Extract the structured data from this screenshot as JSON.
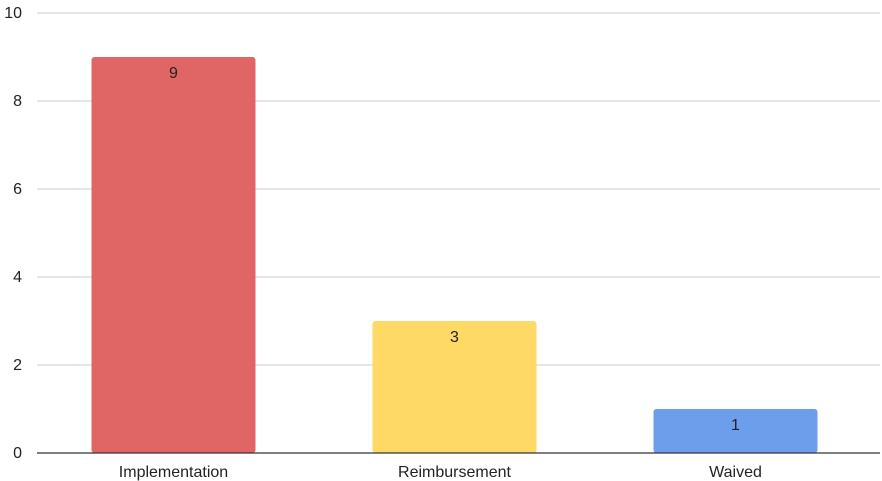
{
  "chart_data": {
    "type": "bar",
    "title": "",
    "xlabel": "",
    "ylabel": "",
    "categories": [
      "Implementation",
      "Reimbursement",
      "Waived"
    ],
    "values": [
      9,
      3,
      1
    ],
    "data_labels": [
      "9",
      "3",
      "1"
    ],
    "colors": [
      "#e06666",
      "#ffd966",
      "#6d9eeb"
    ],
    "ylim": [
      0,
      10
    ],
    "yticks": [
      0,
      2,
      4,
      6,
      8,
      10
    ],
    "ytick_labels": [
      "0",
      "2",
      "4",
      "6",
      "8",
      "10"
    ],
    "grid": true,
    "legend": "none"
  }
}
